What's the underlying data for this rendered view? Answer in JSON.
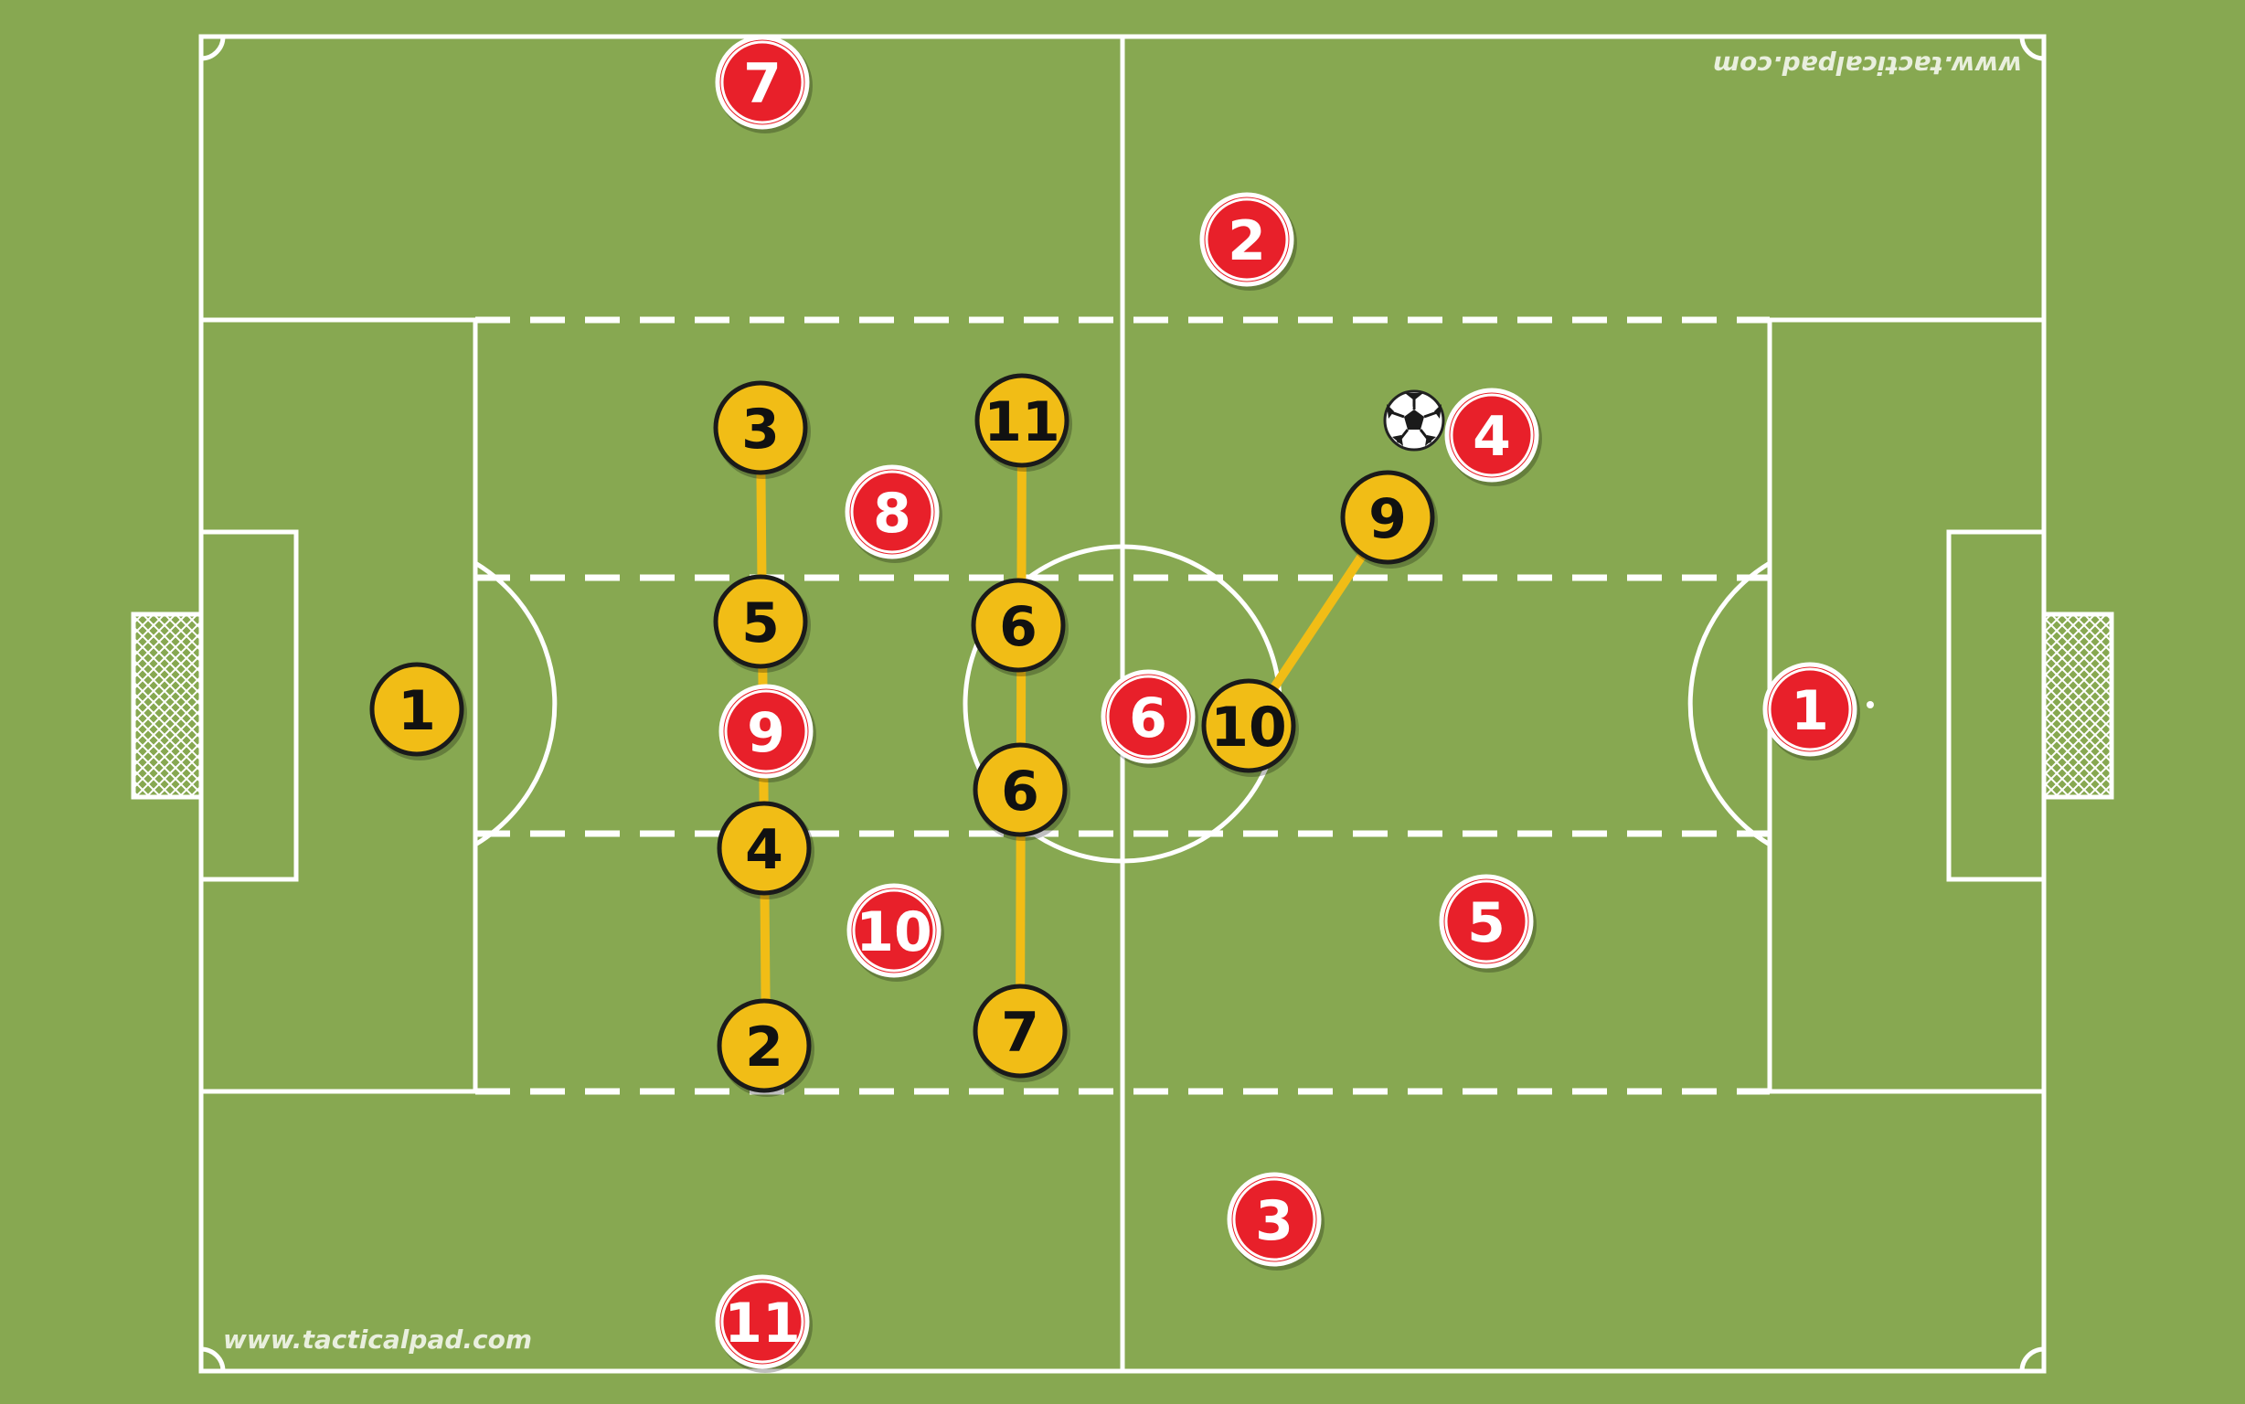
{
  "watermark": {
    "text": "www.tacticalpad.com"
  },
  "colors": {
    "pitch": "#87a851",
    "lines": "#ffffff",
    "team_yellow": "#f1bd16",
    "team_red": "#e8202a",
    "links": "#f1bd16"
  },
  "yellow_team": [
    {
      "number": "1"
    },
    {
      "number": "3"
    },
    {
      "number": "5"
    },
    {
      "number": "4"
    },
    {
      "number": "2"
    },
    {
      "number": "11"
    },
    {
      "number": "6"
    },
    {
      "number": "6"
    },
    {
      "number": "7"
    },
    {
      "number": "10"
    },
    {
      "number": "9"
    }
  ],
  "red_team": [
    {
      "number": "7"
    },
    {
      "number": "2"
    },
    {
      "number": "8"
    },
    {
      "number": "9"
    },
    {
      "number": "10"
    },
    {
      "number": "11"
    },
    {
      "number": "6"
    },
    {
      "number": "4"
    },
    {
      "number": "5"
    },
    {
      "number": "3"
    },
    {
      "number": "1"
    }
  ],
  "ball": {
    "icon": "soccer-ball-icon"
  }
}
